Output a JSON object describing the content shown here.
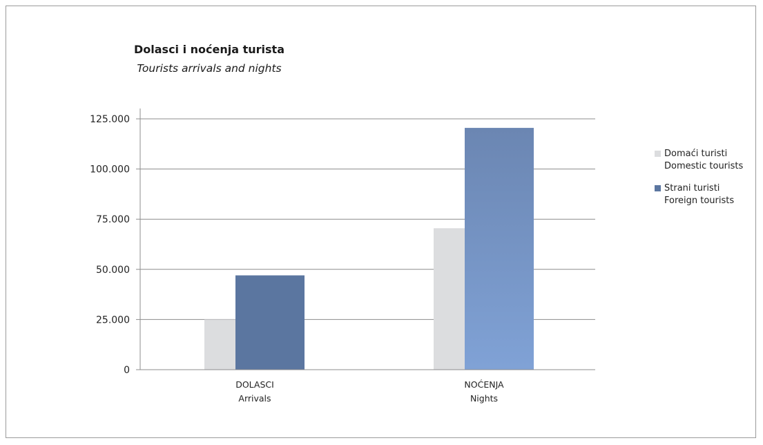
{
  "chart_data": {
    "type": "bar",
    "title": "Dolasci i noćenja turista",
    "subtitle": "Tourists arrivals and nights",
    "categories": [
      {
        "line1": "DOLASCI",
        "line2": "Arrivals"
      },
      {
        "line1": "NOĆENJA",
        "line2": "Nights"
      }
    ],
    "series": [
      {
        "name_line1": "Domaći turisti",
        "name_line2": "Domestic tourists",
        "values": [
          25000,
          70500
        ],
        "color": "#dcdddf"
      },
      {
        "name_line1": "Strani turisti",
        "name_line2": "Foreign tourists",
        "values": [
          47000,
          120500
        ],
        "color": "#5b76a0"
      }
    ],
    "yticks": [
      "0",
      "25.000",
      "50.000",
      "75.000",
      "100.000",
      "125.000"
    ],
    "ylim": [
      0,
      125000
    ],
    "grid": true,
    "legend_position": "right"
  }
}
